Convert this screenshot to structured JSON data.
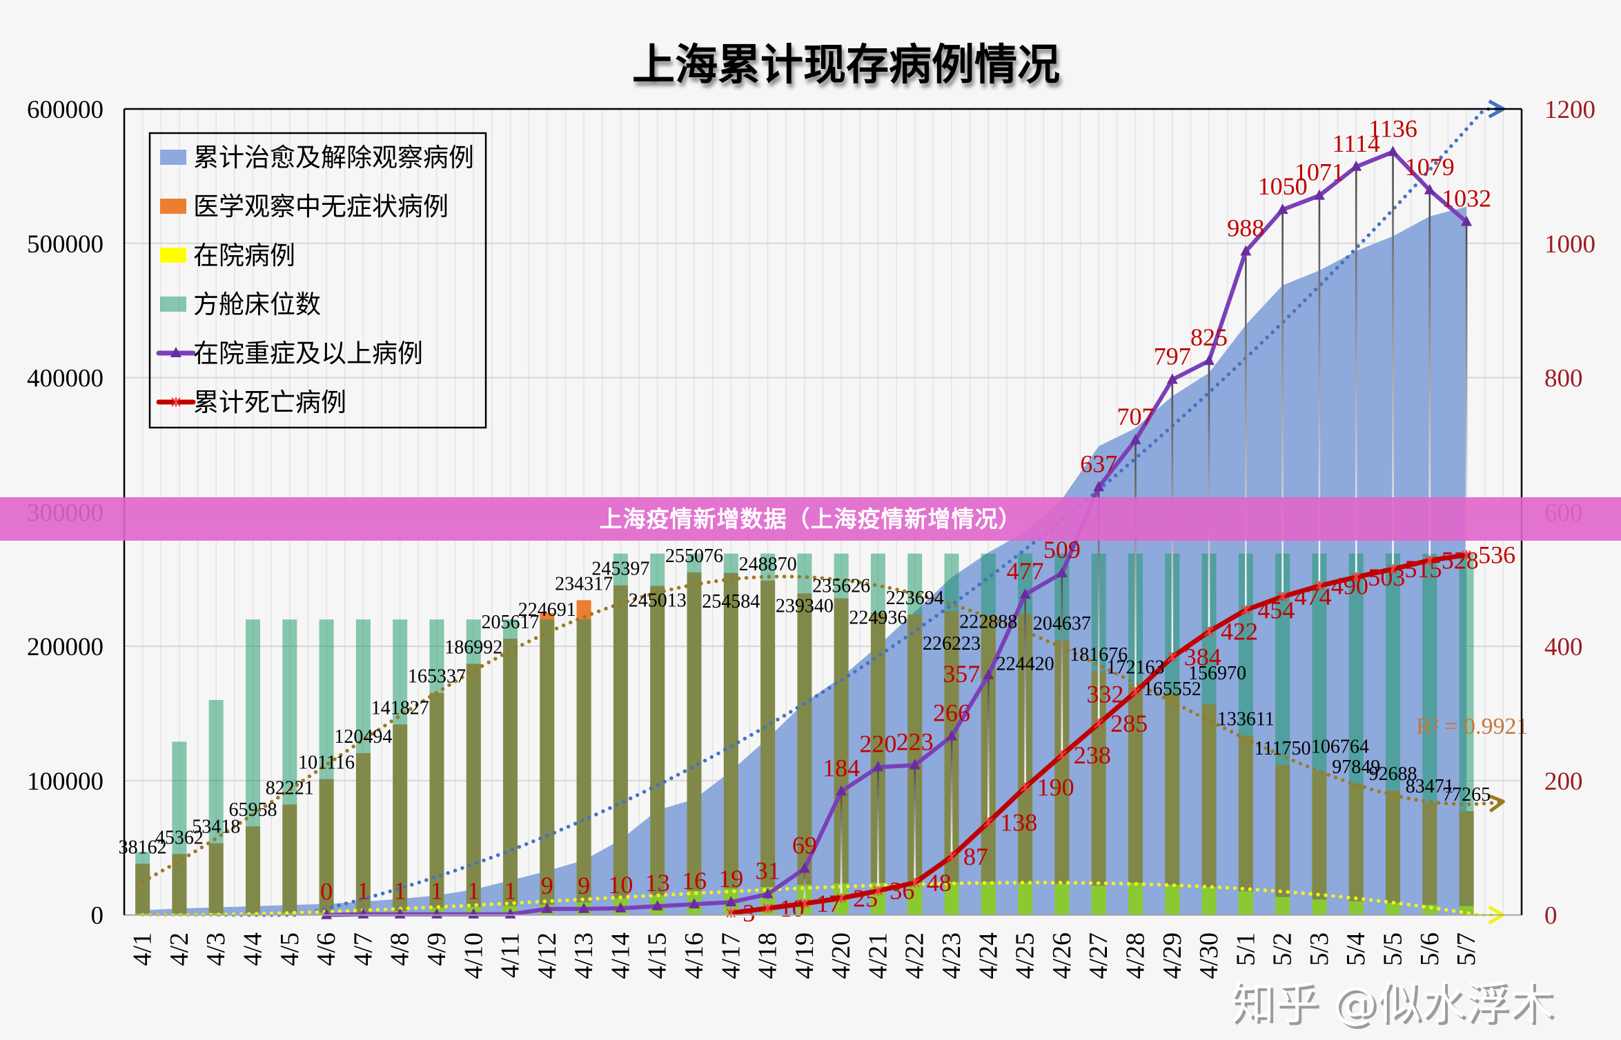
{
  "page": {
    "banner_text": "上海疫情新增数据（上海疫情新增情况）",
    "watermark": "知乎 @似水浮木"
  },
  "chart_data": {
    "type": "combo",
    "title": "上海累计现存病例情况",
    "xlabel": "",
    "ylabel": "",
    "grid": true,
    "legend_position": "top-left",
    "label_color": "#C00000",
    "categories": [
      "4/1",
      "4/2",
      "4/3",
      "4/4",
      "4/5",
      "4/6",
      "4/7",
      "4/8",
      "4/9",
      "4/10",
      "4/11",
      "4/12",
      "4/13",
      "4/14",
      "4/15",
      "4/16",
      "4/17",
      "4/18",
      "4/19",
      "4/20",
      "4/21",
      "4/22",
      "4/23",
      "4/24",
      "4/25",
      "4/26",
      "4/27",
      "4/28",
      "4/29",
      "4/30",
      "5/1",
      "5/2",
      "5/3",
      "5/4",
      "5/5",
      "5/6",
      "5/7"
    ],
    "y_left": {
      "min": 0,
      "max": 600000,
      "step": 100000,
      "ticks": [
        "0",
        "100000",
        "200000",
        "300000",
        "400000",
        "500000",
        "600000"
      ],
      "color": "#000000"
    },
    "y_right": {
      "min": 0,
      "max": 1200,
      "step": 200,
      "ticks": [
        "0",
        "200",
        "400",
        "600",
        "800",
        "1000",
        "1200"
      ],
      "color": "#9C1B1F"
    },
    "series": [
      {
        "key": "cured",
        "name": "累计治愈及解除观察病例",
        "type": "area",
        "axis": "left",
        "color": "#8EA9DB",
        "values": [
          3500,
          4800,
          5600,
          6500,
          7400,
          8200,
          9900,
          12000,
          14500,
          19000,
          25700,
          32700,
          40800,
          55900,
          78000,
          86100,
          107100,
          131500,
          158200,
          176900,
          200200,
          225700,
          251300,
          269900,
          285100,
          309400,
          349000,
          362400,
          386200,
          403500,
          439300,
          468700,
          479700,
          494300,
          505300,
          520000,
          527300
        ]
      },
      {
        "key": "asymptomatic",
        "name": "医学观察中无症状病例",
        "type": "bar",
        "axis": "left",
        "color": "#ED7D31",
        "data_labels": true,
        "values": [
          38162,
          45362,
          53418,
          65958,
          82221,
          101116,
          120494,
          141827,
          165337,
          186992,
          205617,
          224691,
          234317,
          245397,
          245013,
          255076,
          254584,
          248870,
          239340,
          235626,
          224936,
          223694,
          226223,
          222888,
          224420,
          204637,
          181676,
          172163,
          165552,
          156970,
          133611,
          111750,
          106764,
          97849,
          92688,
          83471,
          77265
        ]
      },
      {
        "key": "hospitalized",
        "name": "在院病例",
        "type": "bar",
        "axis": "left",
        "color": "#FFFF00",
        "values": [
          1000,
          1100,
          1300,
          1400,
          1500,
          1700,
          2200,
          3000,
          5500,
          6000,
          6800,
          7700,
          9400,
          12300,
          14600,
          18000,
          19700,
          20900,
          22600,
          23500,
          24000,
          24000,
          24500,
          24500,
          24000,
          23100,
          21800,
          24000,
          22500,
          20700,
          17600,
          13400,
          11500,
          10200,
          8900,
          7500,
          6600
        ]
      },
      {
        "key": "cabin_beds",
        "name": "方舱床位数",
        "type": "bar",
        "axis": "left",
        "color": "#149664",
        "fill_opacity": 0.5,
        "values": [
          47000,
          129000,
          160000,
          220000,
          220000,
          220000,
          220000,
          220000,
          220000,
          220000,
          220000,
          220000,
          220000,
          269000,
          269000,
          269000,
          269000,
          269000,
          269000,
          269000,
          269000,
          269000,
          269000,
          269000,
          269000,
          269000,
          269000,
          269000,
          269000,
          269000,
          269000,
          269000,
          269000,
          269000,
          269000,
          269000,
          269000
        ]
      },
      {
        "key": "severe",
        "name": "在院重症及以上病例",
        "type": "line",
        "axis": "right",
        "color": "#7A40B8",
        "marker": "triangle",
        "marker_color": "#6A2C9E",
        "data_labels": true,
        "values": [
          null,
          null,
          null,
          null,
          null,
          0,
          1,
          1,
          1,
          1,
          1,
          9,
          9,
          10,
          13,
          16,
          19,
          31,
          69,
          184,
          220,
          223,
          266,
          357,
          477,
          509,
          637,
          707,
          797,
          825,
          988,
          1050,
          1071,
          1114,
          1136,
          1079,
          1032
        ]
      },
      {
        "key": "deaths",
        "name": "累计死亡病例",
        "type": "line",
        "axis": "right",
        "color": "#C00000",
        "marker": "star",
        "marker_color": "#F04040",
        "data_labels": true,
        "values": [
          null,
          null,
          null,
          null,
          null,
          null,
          null,
          null,
          null,
          null,
          null,
          null,
          null,
          null,
          null,
          null,
          3,
          10,
          17,
          25,
          36,
          48,
          87,
          138,
          190,
          238,
          285,
          332,
          384,
          422,
          454,
          474,
          490,
          503,
          515,
          528,
          536
        ]
      }
    ],
    "high_low_lines": {
      "between": [
        "在院重症及以上病例",
        "累计死亡病例"
      ]
    },
    "trendlines": [
      {
        "key": "cured-trend",
        "series": "累计治愈及解除观察病例",
        "type": "polynomial",
        "order": 2,
        "forward": 1,
        "color": "#4472C4"
      },
      {
        "key": "asymptomatic-trend",
        "series": "医学观察中无症状病例",
        "type": "polynomial",
        "order": 4,
        "forward": 1,
        "color": "#9C7A22",
        "label": "R² = 0.9921",
        "label_color": "#C5773A"
      },
      {
        "key": "hospitalized-trend",
        "series": "在院病例",
        "type": "polynomial",
        "order": 3,
        "forward": 1,
        "color": "#F2F21A"
      }
    ]
  }
}
